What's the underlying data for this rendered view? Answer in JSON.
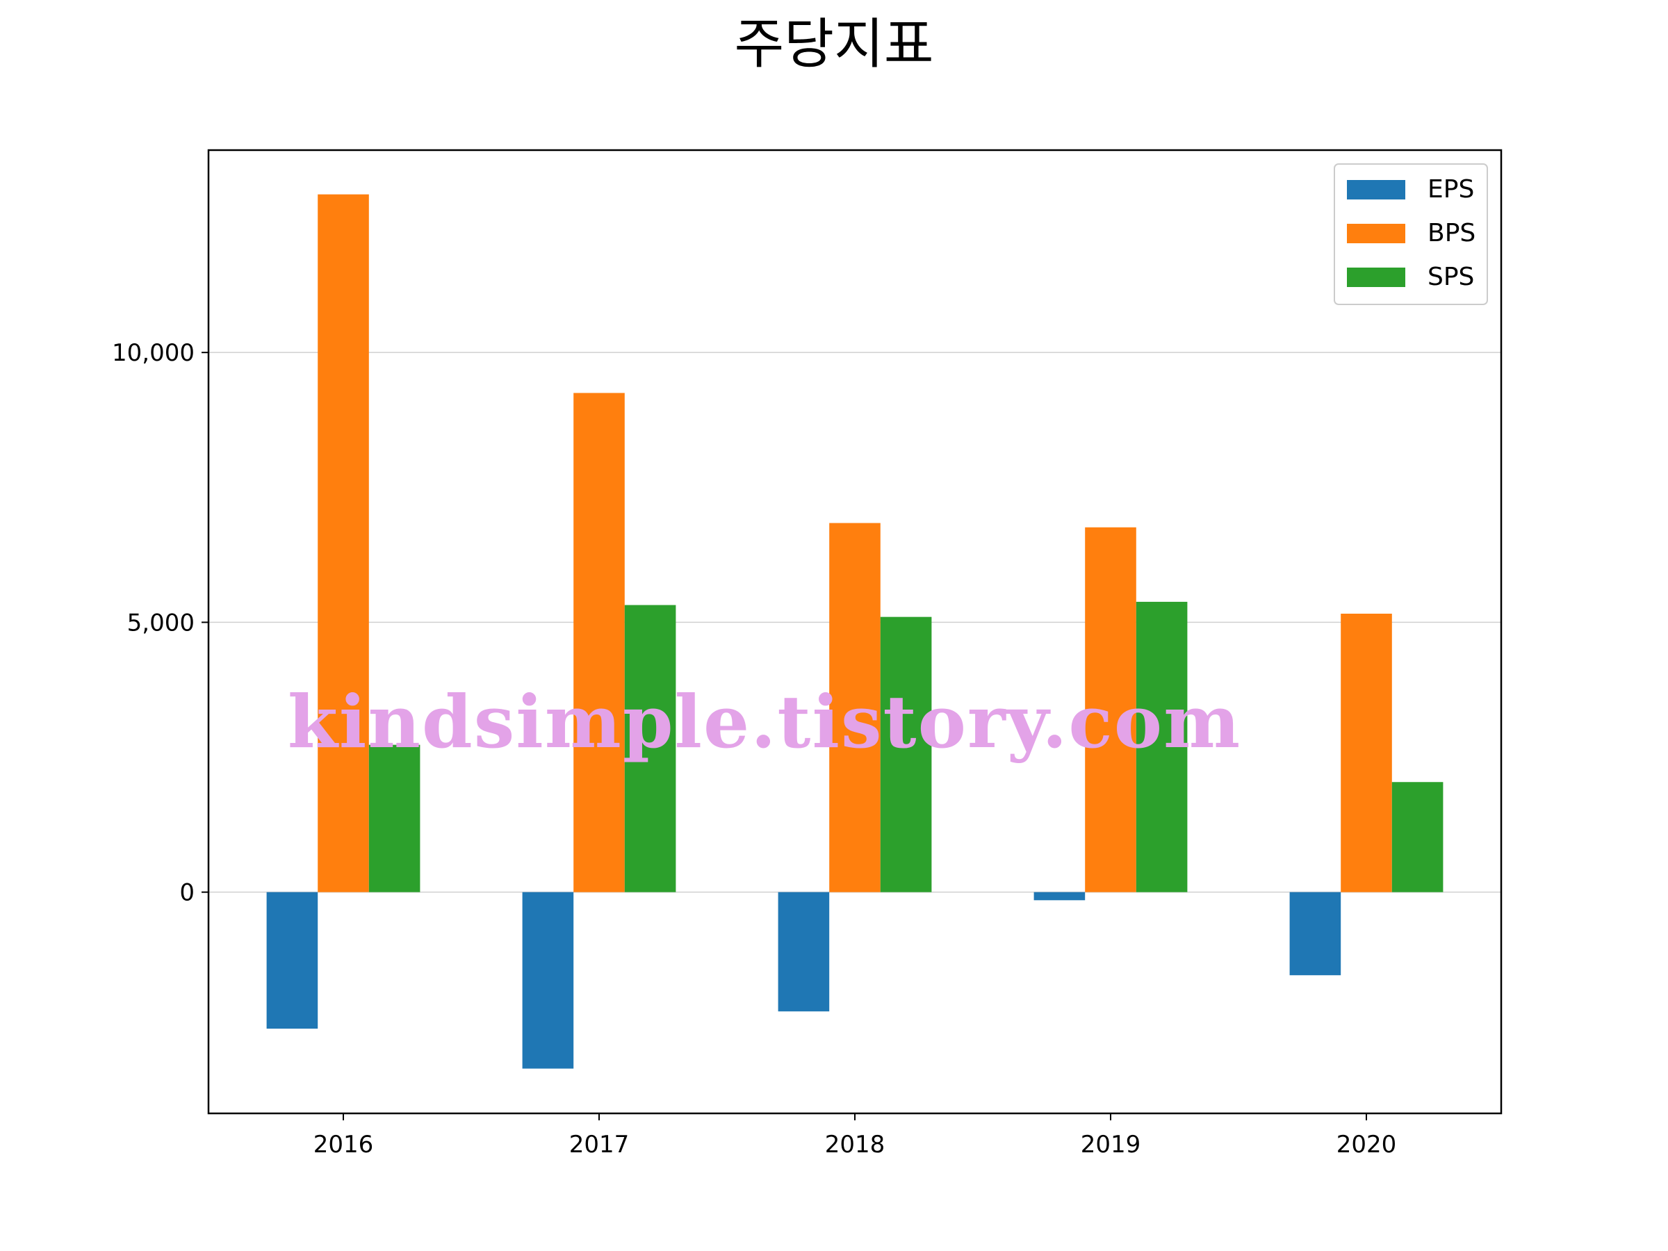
{
  "chart_data": {
    "type": "bar",
    "title": "주당지표",
    "categories": [
      "2016",
      "2017",
      "2018",
      "2019",
      "2020"
    ],
    "series": [
      {
        "name": "EPS",
        "color": "#1f77b4",
        "values": [
          -2530,
          -3270,
          -2210,
          -150,
          -1540
        ]
      },
      {
        "name": "BPS",
        "color": "#ff7f0e",
        "values": [
          12930,
          9250,
          6840,
          6760,
          5160
        ]
      },
      {
        "name": "SPS",
        "color": "#2ca02c",
        "values": [
          2730,
          5320,
          5100,
          5380,
          2040
        ]
      }
    ],
    "ylim": [
      -4100,
      13750
    ],
    "yticks": [
      0,
      5000,
      10000
    ],
    "ytick_labels": [
      "0",
      "5,000",
      "10,000"
    ],
    "grid": "horizontal",
    "legend": "top-right",
    "watermark": "kindsimple.tistory.com"
  }
}
